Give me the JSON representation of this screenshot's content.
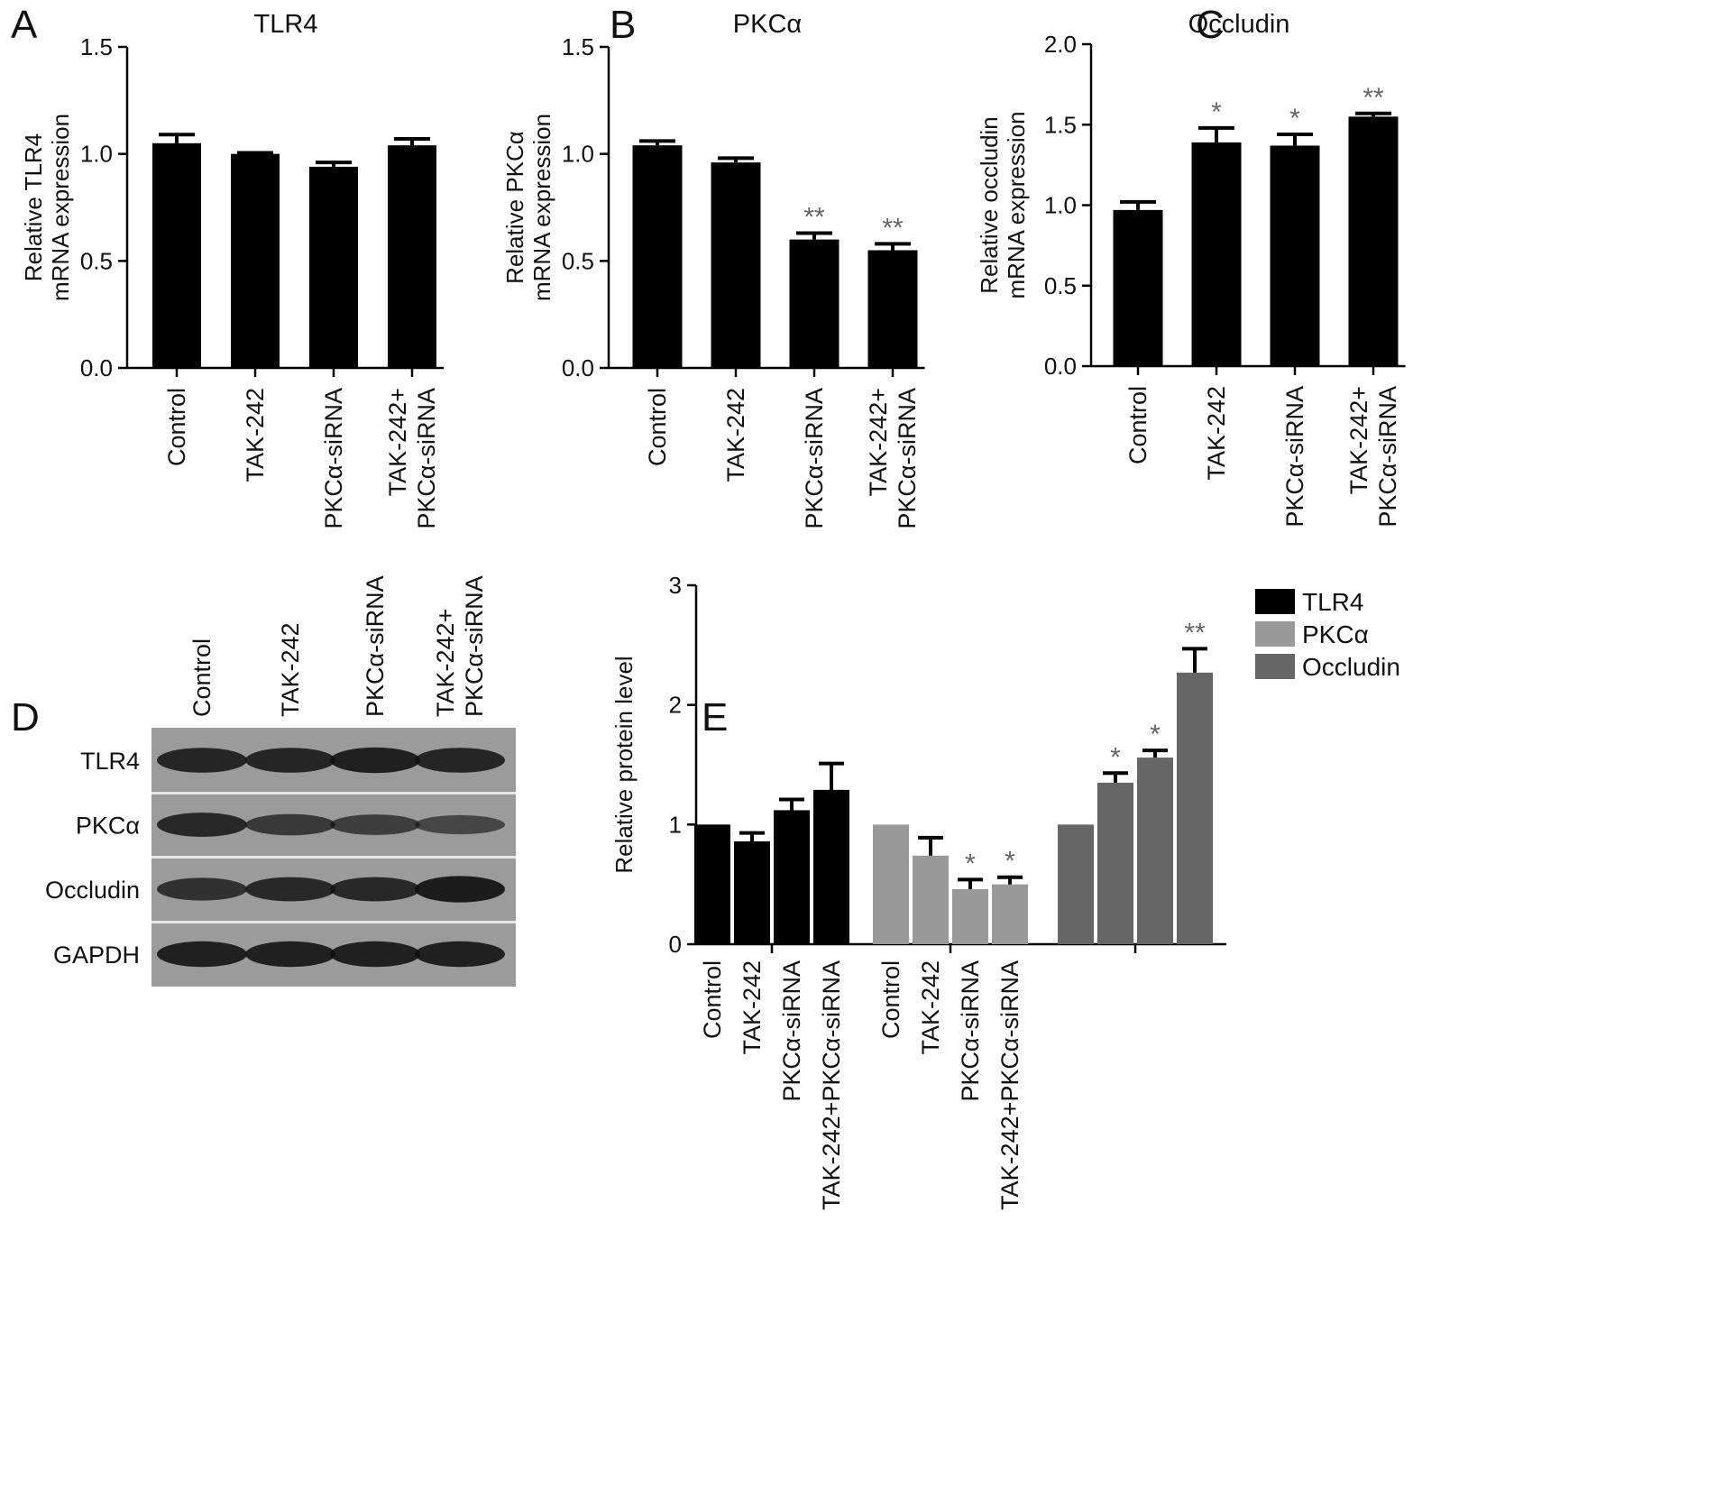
{
  "panels": {
    "A": {
      "letter": "A"
    },
    "B": {
      "letter": "B"
    },
    "C": {
      "letter": "C"
    },
    "D": {
      "letter": "D"
    },
    "E": {
      "letter": "E"
    }
  },
  "blot": {
    "lanes": [
      "Control",
      "TAK-242",
      [
        "PKCα-siRNA"
      ],
      [
        "TAK-242+",
        "PKCα-siRNA"
      ]
    ],
    "rows": [
      "TLR4",
      "PKCα",
      "Occludin",
      "GAPDH"
    ],
    "band_intensity": {
      "TLR4": [
        0.85,
        0.85,
        0.9,
        0.85
      ],
      "PKCα": [
        0.8,
        0.6,
        0.55,
        0.45
      ],
      "Occludin": [
        0.7,
        0.8,
        0.8,
        0.95
      ],
      "GAPDH": [
        0.9,
        0.9,
        0.9,
        0.9
      ]
    }
  },
  "chart_data": [
    {
      "id": "A",
      "type": "bar",
      "title": "TLR4",
      "ylabel": [
        "Relative TLR4",
        "mRNA expression"
      ],
      "categories": [
        [
          "Control"
        ],
        [
          "TAK-242"
        ],
        [
          "PKCα-siRNA"
        ],
        [
          "TAK-242+",
          "PKCα-siRNA"
        ]
      ],
      "values": [
        1.05,
        1.0,
        0.94,
        1.04
      ],
      "errors": [
        0.04,
        0.005,
        0.02,
        0.03
      ],
      "sig": [
        "",
        "",
        "",
        ""
      ],
      "ylim": [
        0,
        1.5
      ],
      "yticks": [
        0.0,
        0.5,
        1.0,
        1.5
      ],
      "ytick_labels": [
        "0.0",
        "0.5",
        "1.0",
        "1.5"
      ],
      "bar_color": "#000000"
    },
    {
      "id": "B",
      "type": "bar",
      "title": "PKCα",
      "ylabel": [
        "Relative PKCα",
        "mRNA expression"
      ],
      "categories": [
        [
          "Control"
        ],
        [
          "TAK-242"
        ],
        [
          "PKCα-siRNA"
        ],
        [
          "TAK-242+",
          "PKCα-siRNA"
        ]
      ],
      "values": [
        1.04,
        0.96,
        0.6,
        0.55
      ],
      "errors": [
        0.02,
        0.02,
        0.03,
        0.03
      ],
      "sig": [
        "",
        "",
        "**",
        "**"
      ],
      "ylim": [
        0,
        1.5
      ],
      "yticks": [
        0.0,
        0.5,
        1.0,
        1.5
      ],
      "ytick_labels": [
        "0.0",
        "0.5",
        "1.0",
        "1.5"
      ],
      "bar_color": "#000000"
    },
    {
      "id": "C",
      "type": "bar",
      "title": "Occludin",
      "ylabel": [
        "Relative occludin",
        "mRNA expression"
      ],
      "categories": [
        [
          "Control"
        ],
        [
          "TAK-242"
        ],
        [
          "PKCα-siRNA"
        ],
        [
          "TAK-242+",
          "PKCα-siRNA"
        ]
      ],
      "values": [
        0.97,
        1.39,
        1.37,
        1.55
      ],
      "errors": [
        0.05,
        0.09,
        0.07,
        0.02
      ],
      "sig": [
        "",
        "*",
        "*",
        "**"
      ],
      "ylim": [
        0,
        2.0
      ],
      "yticks": [
        0.0,
        0.5,
        1.0,
        1.5,
        2.0
      ],
      "ytick_labels": [
        "0.0",
        "0.5",
        "1.0",
        "1.5",
        "2.0"
      ],
      "bar_color": "#000000"
    },
    {
      "id": "E",
      "type": "bar",
      "ylabel": "Relative protein level",
      "categories": [
        "Control",
        "TAK-242",
        "PKCα-siRNA",
        "TAK-242+PKCα-siRNA"
      ],
      "group_categories": [
        [
          "Control",
          "TAK-242",
          "PKCα-siRNA",
          "TAK-242+PKCα-siRNA"
        ],
        [
          "Control",
          "TAK-242",
          "PKCα-siRNA",
          "TAK-242+PKCα-siRNA"
        ],
        []
      ],
      "ylim": [
        0,
        3
      ],
      "yticks": [
        0,
        1,
        2,
        3
      ],
      "ytick_labels": [
        "0",
        "1",
        "2",
        "3"
      ],
      "legend_position": "top-right",
      "series": [
        {
          "name": "TLR4",
          "color": "#000000",
          "values": [
            1.0,
            0.86,
            1.12,
            1.29
          ],
          "errors": [
            0.0,
            0.07,
            0.09,
            0.22
          ],
          "sig": [
            "",
            "",
            "",
            ""
          ]
        },
        {
          "name": "PKCα",
          "color": "#999999",
          "values": [
            1.0,
            0.74,
            0.46,
            0.5
          ],
          "errors": [
            0.0,
            0.15,
            0.08,
            0.06
          ],
          "sig": [
            "",
            "",
            "*",
            "*"
          ]
        },
        {
          "name": "Occludin",
          "color": "#666666",
          "values": [
            1.0,
            1.35,
            1.56,
            2.27
          ],
          "errors": [
            0.0,
            0.08,
            0.06,
            0.2
          ],
          "sig": [
            "",
            "*",
            "*",
            "**"
          ]
        }
      ]
    }
  ]
}
